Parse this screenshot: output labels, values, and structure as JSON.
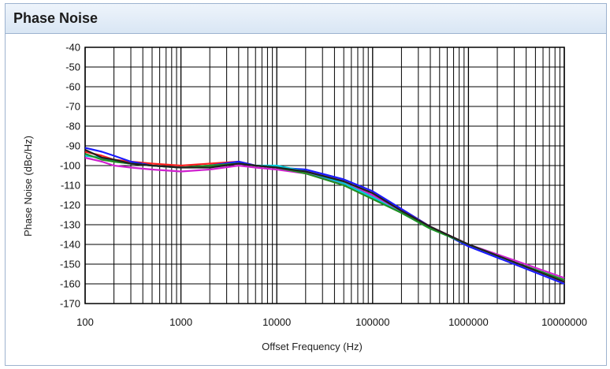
{
  "panel": {
    "title": "Phase Noise"
  },
  "chart_data": {
    "type": "line",
    "title": "",
    "xlabel": "Offset Frequency (Hz)",
    "ylabel": "Phase Noise (dBc/Hz)",
    "xscale": "log",
    "xlim": [
      100,
      10000000
    ],
    "ylim": [
      -170,
      -40
    ],
    "grid": true,
    "x_ticks": [
      {
        "value": 100,
        "label": "100"
      },
      {
        "value": 1000,
        "label": "1000"
      },
      {
        "value": 10000,
        "label": "10000"
      },
      {
        "value": 100000,
        "label": "100000"
      },
      {
        "value": 1000000,
        "label": "1000000"
      },
      {
        "value": 10000000,
        "label": "10000000"
      }
    ],
    "y_ticks": [
      {
        "value": -40,
        "label": "-40"
      },
      {
        "value": -50,
        "label": "-50"
      },
      {
        "value": -60,
        "label": "-60"
      },
      {
        "value": -70,
        "label": "-70"
      },
      {
        "value": -80,
        "label": "-80"
      },
      {
        "value": -90,
        "label": "-90"
      },
      {
        "value": -100,
        "label": "-100"
      },
      {
        "value": -110,
        "label": "-110"
      },
      {
        "value": -120,
        "label": "-120"
      },
      {
        "value": -130,
        "label": "-130"
      },
      {
        "value": -140,
        "label": "-140"
      },
      {
        "value": -150,
        "label": "-150"
      },
      {
        "value": -160,
        "label": "-160"
      },
      {
        "value": -170,
        "label": "-170"
      }
    ],
    "series": [
      {
        "color": "#ff2020",
        "x": [
          100,
          150,
          200,
          300,
          500,
          1000,
          2000,
          4000,
          6000,
          10000,
          20000,
          50000,
          100000,
          200000,
          400000,
          1000000,
          3000000,
          10000000
        ],
        "y": [
          -93,
          -95,
          -97,
          -98,
          -99,
          -100,
          -99,
          -98,
          -100,
          -101,
          -103,
          -108,
          -114,
          -122,
          -131,
          -140,
          -149,
          -159
        ]
      },
      {
        "color": "#1a1aff",
        "x": [
          100,
          150,
          200,
          300,
          500,
          1000,
          2000,
          4000,
          6000,
          10000,
          20000,
          50000,
          100000,
          200000,
          400000,
          1000000,
          3000000,
          10000000
        ],
        "y": [
          -91,
          -93,
          -95,
          -98,
          -100,
          -101,
          -100,
          -98,
          -100,
          -101,
          -102,
          -107,
          -113,
          -122,
          -131,
          -141,
          -150,
          -160
        ]
      },
      {
        "color": "#d020d0",
        "x": [
          100,
          150,
          200,
          300,
          500,
          1000,
          2000,
          4000,
          6000,
          10000,
          20000,
          50000,
          100000,
          200000,
          400000,
          1000000,
          3000000,
          10000000
        ],
        "y": [
          -96,
          -98,
          -100,
          -101,
          -102,
          -103,
          -102,
          -100,
          -101,
          -102,
          -104,
          -109,
          -115,
          -123,
          -131,
          -140,
          -148,
          -157
        ]
      },
      {
        "color": "#00c8d8",
        "x": [
          100,
          150,
          200,
          300,
          500,
          1000,
          2000,
          4000,
          6000,
          10000,
          20000,
          50000,
          100000,
          200000,
          400000,
          1000000,
          3000000,
          10000000
        ],
        "y": [
          -95,
          -96,
          -98,
          -99,
          -100,
          -101,
          -100,
          -99,
          -100,
          -100,
          -103,
          -109,
          -116,
          -124,
          -132,
          -140,
          -149,
          -158
        ]
      },
      {
        "color": "#209020",
        "x": [
          100,
          150,
          200,
          300,
          500,
          1000,
          2000,
          4000,
          6000,
          10000,
          20000,
          50000,
          100000,
          200000,
          400000,
          1000000,
          3000000,
          10000000
        ],
        "y": [
          -94,
          -97,
          -98,
          -99,
          -100,
          -101,
          -100,
          -99,
          -100,
          -101,
          -104,
          -110,
          -117,
          -124,
          -132,
          -140,
          -149,
          -158
        ]
      },
      {
        "color": "#202020",
        "x": [
          100,
          150,
          200,
          300,
          500,
          1000,
          2000,
          4000,
          6000,
          10000,
          20000,
          50000,
          100000,
          200000,
          400000,
          1000000,
          3000000,
          10000000
        ],
        "y": [
          -92,
          -96,
          -97,
          -99,
          -100,
          -101,
          -101,
          -99,
          -100,
          -101,
          -103,
          -108,
          -114,
          -123,
          -131,
          -140,
          -149,
          -159
        ]
      }
    ]
  }
}
